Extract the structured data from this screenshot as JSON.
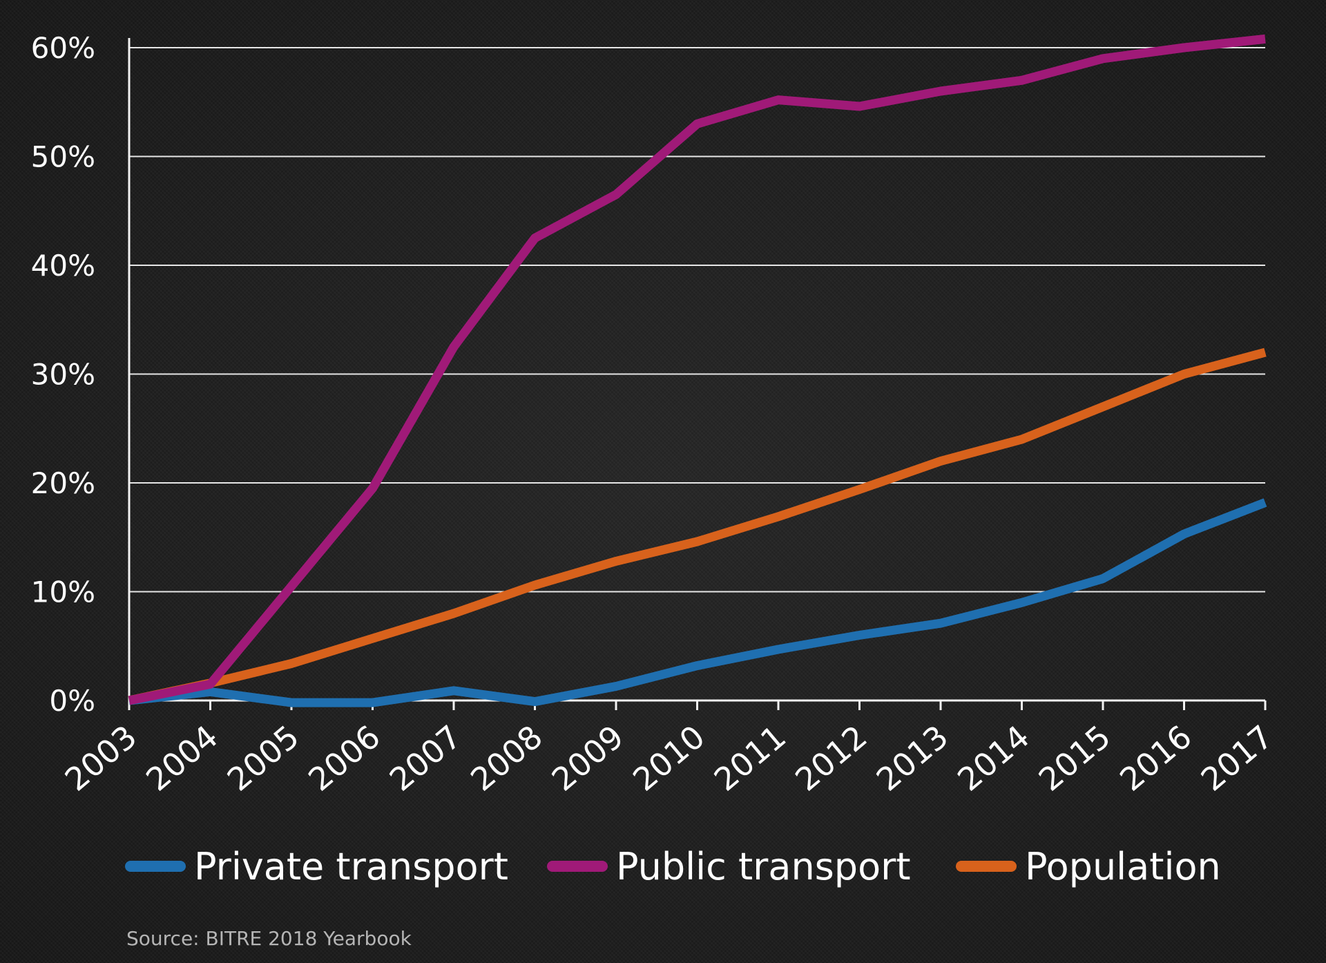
{
  "chart_data": {
    "type": "line",
    "title": "",
    "xlabel": "",
    "ylabel": "",
    "x": [
      "2003",
      "2004",
      "2005",
      "2006",
      "2007",
      "2008",
      "2009",
      "2010",
      "2011",
      "2012",
      "2013",
      "2014",
      "2015",
      "2016",
      "2017"
    ],
    "ylim": [
      0,
      60
    ],
    "y_ticks": [
      0,
      10,
      20,
      30,
      40,
      50,
      60
    ],
    "y_tick_labels": [
      "0%",
      "10%",
      "20%",
      "30%",
      "40%",
      "50%",
      "60%"
    ],
    "grid": true,
    "legend_position": "bottom",
    "series": [
      {
        "name": "Private transport",
        "color": "#1f6fb0",
        "values": [
          0,
          0.8,
          -0.2,
          -0.2,
          0.9,
          -0.1,
          1.3,
          3.2,
          4.7,
          6.0,
          7.1,
          9.0,
          11.2,
          15.3,
          18.2
        ]
      },
      {
        "name": "Public transport",
        "color": "#a01a78",
        "values": [
          0,
          1.5,
          10.5,
          19.5,
          32.5,
          42.5,
          46.5,
          53.0,
          55.2,
          54.6,
          56.0,
          57.0,
          59.0,
          60.0,
          60.8
        ]
      },
      {
        "name": "Population",
        "color": "#d8621c",
        "values": [
          0,
          1.6,
          3.4,
          5.7,
          8.0,
          10.6,
          12.8,
          14.6,
          16.9,
          19.4,
          22.0,
          24.0,
          27.0,
          30.0,
          32.0
        ]
      }
    ],
    "source": "Source: BITRE 2018 Yearbook"
  }
}
